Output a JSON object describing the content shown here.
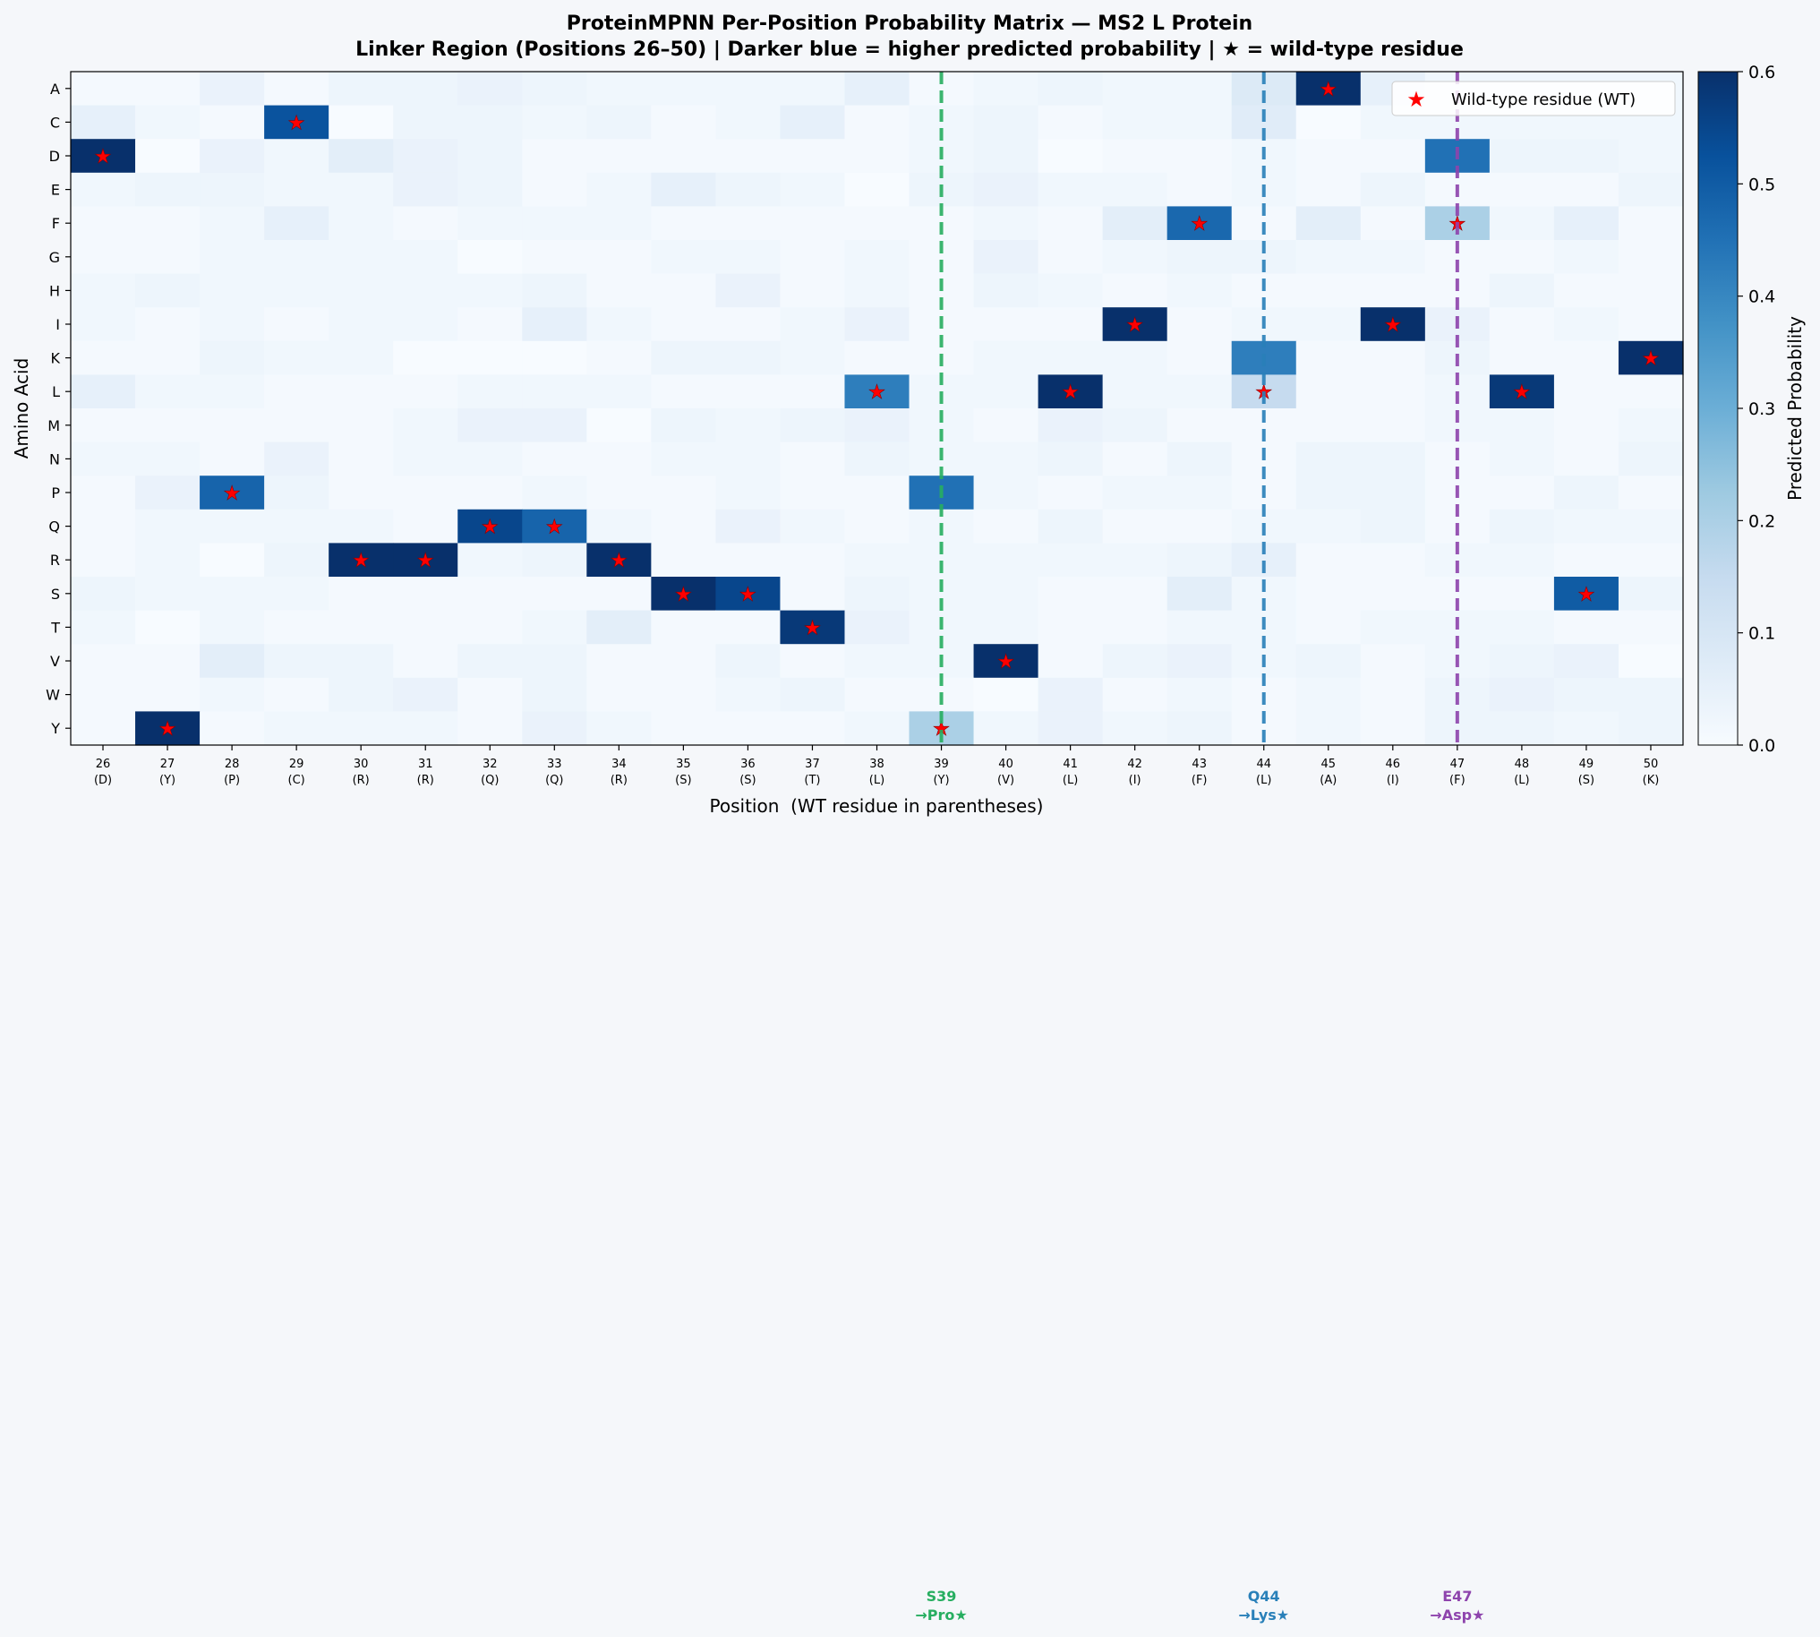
{
  "chart_data": {
    "type": "heatmap",
    "title": "ProteinMPNN Per-Position Probability Matrix — MS2 L Protein",
    "subtitle": "Linker Region (Positions 26–50) | Darker blue = higher predicted probability | ★ = wild-type residue",
    "xlabel": "Position  (WT residue in parentheses)",
    "ylabel": "Amino Acid",
    "colorbar_label": "Predicted Probability",
    "colorbar_ticks": [
      "0.0",
      "0.1",
      "0.2",
      "0.3",
      "0.4",
      "0.5",
      "0.6"
    ],
    "color_range": [
      0,
      0.6
    ],
    "colormap": "Blues",
    "legend": {
      "label": "Wild-type residue (WT)",
      "position": "top-right",
      "marker_color": "#ff0000"
    },
    "amino_acids": [
      "A",
      "C",
      "D",
      "E",
      "F",
      "G",
      "H",
      "I",
      "K",
      "L",
      "M",
      "N",
      "P",
      "Q",
      "R",
      "S",
      "T",
      "V",
      "W",
      "Y"
    ],
    "positions": [
      26,
      27,
      28,
      29,
      30,
      31,
      32,
      33,
      34,
      35,
      36,
      37,
      38,
      39,
      40,
      41,
      42,
      43,
      44,
      45,
      46,
      47,
      48,
      49,
      50
    ],
    "wt_residues": [
      "D",
      "Y",
      "P",
      "C",
      "R",
      "R",
      "Q",
      "Q",
      "R",
      "S",
      "S",
      "T",
      "L",
      "Y",
      "V",
      "L",
      "I",
      "F",
      "L",
      "A",
      "I",
      "F",
      "L",
      "S",
      "K"
    ],
    "values": [
      [
        0.01,
        0.01,
        0.04,
        0.01,
        0.03,
        0.03,
        0.04,
        0.03,
        0.02,
        0.02,
        0.02,
        0.02,
        0.05,
        0.01,
        0.02,
        0.03,
        0.02,
        0.02,
        0.08,
        0.6,
        0.05,
        0.02,
        0.02,
        0.02,
        0.02
      ],
      [
        0.05,
        0.02,
        0.01,
        0.52,
        0.0,
        0.03,
        0.03,
        0.02,
        0.03,
        0.01,
        0.02,
        0.05,
        0.01,
        0.02,
        0.03,
        0.01,
        0.02,
        0.02,
        0.07,
        0.0,
        0.02,
        0.02,
        0.02,
        0.02,
        0.02
      ],
      [
        0.6,
        0.0,
        0.04,
        0.02,
        0.06,
        0.04,
        0.03,
        0.01,
        0.01,
        0.01,
        0.01,
        0.01,
        0.01,
        0.02,
        0.03,
        0.0,
        0.01,
        0.01,
        0.02,
        0.01,
        0.01,
        0.45,
        0.03,
        0.03,
        0.02
      ],
      [
        0.02,
        0.03,
        0.03,
        0.02,
        0.02,
        0.04,
        0.03,
        0.01,
        0.02,
        0.05,
        0.03,
        0.02,
        0.0,
        0.03,
        0.04,
        0.02,
        0.02,
        0.01,
        0.02,
        0.01,
        0.03,
        0.01,
        0.01,
        0.01,
        0.03
      ],
      [
        0.01,
        0.01,
        0.02,
        0.05,
        0.02,
        0.01,
        0.02,
        0.02,
        0.02,
        0.01,
        0.01,
        0.01,
        0.01,
        0.01,
        0.02,
        0.01,
        0.06,
        0.47,
        0.01,
        0.06,
        0.01,
        0.2,
        0.02,
        0.05,
        0.01
      ],
      [
        0.01,
        0.01,
        0.02,
        0.02,
        0.02,
        0.02,
        0.0,
        0.01,
        0.01,
        0.02,
        0.02,
        0.01,
        0.02,
        0.01,
        0.04,
        0.01,
        0.02,
        0.03,
        0.03,
        0.02,
        0.02,
        0.01,
        0.01,
        0.02,
        0.01
      ],
      [
        0.02,
        0.03,
        0.02,
        0.02,
        0.02,
        0.02,
        0.02,
        0.03,
        0.01,
        0.01,
        0.04,
        0.01,
        0.02,
        0.01,
        0.03,
        0.02,
        0.01,
        0.02,
        0.01,
        0.01,
        0.01,
        0.01,
        0.03,
        0.01,
        0.01
      ],
      [
        0.02,
        0.01,
        0.02,
        0.01,
        0.02,
        0.02,
        0.01,
        0.05,
        0.02,
        0.01,
        0.01,
        0.02,
        0.04,
        0.01,
        0.01,
        0.01,
        0.6,
        0.01,
        0.02,
        0.02,
        0.6,
        0.04,
        0.01,
        0.02,
        0.01
      ],
      [
        0.01,
        0.01,
        0.03,
        0.02,
        0.02,
        0.0,
        0.0,
        0.0,
        0.01,
        0.03,
        0.03,
        0.02,
        0.01,
        0.01,
        0.02,
        0.02,
        0.02,
        0.01,
        0.42,
        0.01,
        0.01,
        0.03,
        0.01,
        0.01,
        0.6
      ],
      [
        0.05,
        0.02,
        0.02,
        0.01,
        0.01,
        0.01,
        0.02,
        0.02,
        0.02,
        0.01,
        0.01,
        0.01,
        0.42,
        0.02,
        0.02,
        0.6,
        0.02,
        0.02,
        0.15,
        0.01,
        0.01,
        0.02,
        0.58,
        0.01,
        0.01
      ],
      [
        0.01,
        0.01,
        0.01,
        0.01,
        0.01,
        0.02,
        0.04,
        0.04,
        0.0,
        0.03,
        0.02,
        0.03,
        0.04,
        0.02,
        0.01,
        0.04,
        0.03,
        0.01,
        0.01,
        0.01,
        0.01,
        0.02,
        0.02,
        0.01,
        0.02
      ],
      [
        0.02,
        0.02,
        0.01,
        0.04,
        0.01,
        0.02,
        0.02,
        0.01,
        0.01,
        0.02,
        0.02,
        0.01,
        0.03,
        0.02,
        0.02,
        0.03,
        0.01,
        0.03,
        0.01,
        0.03,
        0.03,
        0.01,
        0.02,
        0.01,
        0.03
      ],
      [
        0.01,
        0.04,
        0.48,
        0.03,
        0.01,
        0.01,
        0.01,
        0.02,
        0.01,
        0.01,
        0.02,
        0.01,
        0.01,
        0.45,
        0.02,
        0.01,
        0.02,
        0.02,
        0.01,
        0.03,
        0.03,
        0.01,
        0.01,
        0.03,
        0.01
      ],
      [
        0.01,
        0.02,
        0.02,
        0.02,
        0.02,
        0.01,
        0.55,
        0.48,
        0.02,
        0.01,
        0.04,
        0.02,
        0.01,
        0.02,
        0.01,
        0.03,
        0.01,
        0.01,
        0.02,
        0.02,
        0.03,
        0.01,
        0.03,
        0.02,
        0.02
      ],
      [
        0.01,
        0.02,
        0.0,
        0.03,
        0.6,
        0.6,
        0.02,
        0.03,
        0.6,
        0.01,
        0.01,
        0.01,
        0.02,
        0.02,
        0.02,
        0.02,
        0.02,
        0.03,
        0.05,
        0.01,
        0.01,
        0.02,
        0.02,
        0.01,
        0.01
      ],
      [
        0.03,
        0.02,
        0.02,
        0.02,
        0.01,
        0.01,
        0.01,
        0.01,
        0.01,
        0.6,
        0.55,
        0.01,
        0.03,
        0.02,
        0.02,
        0.01,
        0.01,
        0.06,
        0.02,
        0.01,
        0.01,
        0.01,
        0.01,
        0.5,
        0.03
      ],
      [
        0.02,
        0.0,
        0.02,
        0.01,
        0.01,
        0.01,
        0.01,
        0.02,
        0.06,
        0.01,
        0.01,
        0.58,
        0.04,
        0.02,
        0.02,
        0.01,
        0.01,
        0.02,
        0.02,
        0.01,
        0.02,
        0.02,
        0.02,
        0.01,
        0.01
      ],
      [
        0.01,
        0.01,
        0.06,
        0.03,
        0.03,
        0.01,
        0.03,
        0.03,
        0.01,
        0.01,
        0.03,
        0.01,
        0.02,
        0.02,
        0.6,
        0.01,
        0.03,
        0.04,
        0.02,
        0.03,
        0.01,
        0.02,
        0.03,
        0.04,
        0.0
      ],
      [
        0.01,
        0.01,
        0.02,
        0.01,
        0.03,
        0.04,
        0.01,
        0.03,
        0.01,
        0.01,
        0.02,
        0.03,
        0.01,
        0.01,
        0.0,
        0.04,
        0.01,
        0.02,
        0.01,
        0.02,
        0.01,
        0.03,
        0.04,
        0.03,
        0.03
      ],
      [
        0.01,
        0.6,
        0.01,
        0.02,
        0.02,
        0.02,
        0.01,
        0.04,
        0.02,
        0.01,
        0.01,
        0.01,
        0.02,
        0.2,
        0.02,
        0.04,
        0.02,
        0.03,
        0.01,
        0.02,
        0.01,
        0.03,
        0.03,
        0.02,
        0.03
      ]
    ],
    "highlights": [
      {
        "position": 39,
        "color": "#27ae60",
        "label_line1": "S39",
        "label_line2": "→Pro★"
      },
      {
        "position": 44,
        "color": "#2980b9",
        "label_line1": "Q44",
        "label_line2": "→Lys★"
      },
      {
        "position": 47,
        "color": "#8e44ad",
        "label_line1": "E47",
        "label_line2": "→Asp★"
      }
    ]
  }
}
